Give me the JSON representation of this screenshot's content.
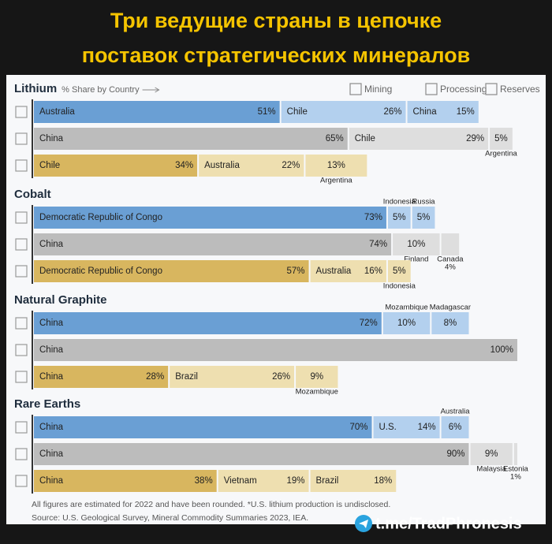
{
  "chart_data": {
    "type": "bar",
    "title": "Три ведущие страны в цепочке поставок стратегических минералов",
    "subtitle": "% Share by Country",
    "xlim": [
      0,
      100
    ],
    "stages": [
      {
        "name": "Mining",
        "color": "#6a9fd4",
        "light_color": "#b3d0ee"
      },
      {
        "name": "Processing",
        "color": "#bcbcbc",
        "light_color": "#dedede"
      },
      {
        "name": "Reserves",
        "color": "#d8b65f",
        "light_color": "#eedfb0"
      }
    ],
    "groups": [
      {
        "name": "Lithium",
        "rows": [
          {
            "categories": [
              "Australia",
              "Chile",
              "China"
            ],
            "values": [
              51,
              26,
              15
            ],
            "value_labels": [
              "51%",
              "26%",
              "15%"
            ]
          },
          {
            "categories": [
              "China",
              "Chile",
              "Argentina"
            ],
            "values": [
              65,
              29,
              5
            ],
            "value_labels": [
              "65%",
              "29%",
              "5%"
            ]
          },
          {
            "categories": [
              "Chile",
              "Australia",
              "Argentina"
            ],
            "values": [
              34,
              22,
              13
            ],
            "value_labels": [
              "34%",
              "22%",
              "13%"
            ]
          }
        ]
      },
      {
        "name": "Cobalt",
        "rows": [
          {
            "categories": [
              "Democratic Republic of Congo",
              "Indonesia",
              "Russia"
            ],
            "values": [
              73,
              5,
              5
            ],
            "value_labels": [
              "73%",
              "5%",
              "5%"
            ]
          },
          {
            "categories": [
              "China",
              "Finland",
              "Canada"
            ],
            "values": [
              74,
              10,
              4
            ],
            "value_labels": [
              "74%",
              "10%",
              "4%"
            ]
          },
          {
            "categories": [
              "Democratic Republic of Congo",
              "Australia",
              "Indonesia"
            ],
            "values": [
              57,
              16,
              5
            ],
            "value_labels": [
              "57%",
              "16%",
              "5%"
            ]
          }
        ]
      },
      {
        "name": "Natural Graphite",
        "rows": [
          {
            "categories": [
              "China",
              "Mozambique",
              "Madagascar"
            ],
            "values": [
              72,
              10,
              8
            ],
            "value_labels": [
              "72%",
              "10%",
              "8%"
            ]
          },
          {
            "categories": [
              "China"
            ],
            "values": [
              100
            ],
            "value_labels": [
              "100%"
            ]
          },
          {
            "categories": [
              "China",
              "Brazil",
              "Mozambique"
            ],
            "values": [
              28,
              26,
              9
            ],
            "value_labels": [
              "28%",
              "26%",
              "9%"
            ]
          }
        ]
      },
      {
        "name": "Rare Earths",
        "rows": [
          {
            "categories": [
              "China",
              "U.S.",
              "Australia"
            ],
            "values": [
              70,
              14,
              6
            ],
            "value_labels": [
              "70%",
              "14%",
              "6%"
            ]
          },
          {
            "categories": [
              "China",
              "Malaysia",
              "Estonia"
            ],
            "values": [
              90,
              9,
              1
            ],
            "value_labels": [
              "90%",
              "9%",
              "1%"
            ]
          },
          {
            "categories": [
              "China",
              "Vietnam",
              "Brazil"
            ],
            "values": [
              38,
              19,
              18
            ],
            "value_labels": [
              "38%",
              "19%",
              "18%"
            ]
          }
        ]
      }
    ],
    "notes": [
      "All figures are estimated for 2022 and have been rounded. *U.S. lithium production is undisclosed.",
      "Source: U.S. Geological Survey, Mineral Commodity Summaries 2023, IEA."
    ],
    "watermark": "t.me/TradPhronesis"
  }
}
